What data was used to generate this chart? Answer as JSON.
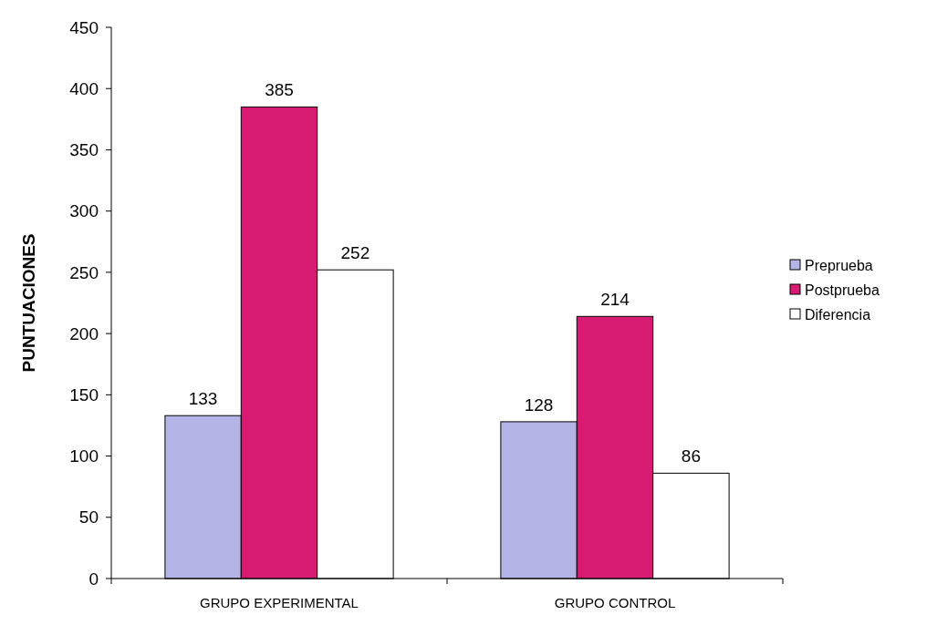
{
  "chart_data": {
    "type": "bar",
    "ylabel": "PUNTUACIONES",
    "categories": [
      "GRUPO EXPERIMENTAL",
      "GRUPO CONTROL"
    ],
    "series": [
      {
        "name": "Preprueba",
        "color": "#b4b4e6",
        "values": [
          133,
          128
        ]
      },
      {
        "name": "Postprueba",
        "color": "#d81b72",
        "values": [
          385,
          214
        ]
      },
      {
        "name": "Diferencia",
        "color": "#ffffff",
        "values": [
          252,
          86
        ]
      }
    ],
    "ylim": [
      0,
      450
    ],
    "yticks": [
      0,
      50,
      100,
      150,
      200,
      250,
      300,
      350,
      400,
      450
    ],
    "data_labels": true,
    "grid": false,
    "legend": "right"
  }
}
